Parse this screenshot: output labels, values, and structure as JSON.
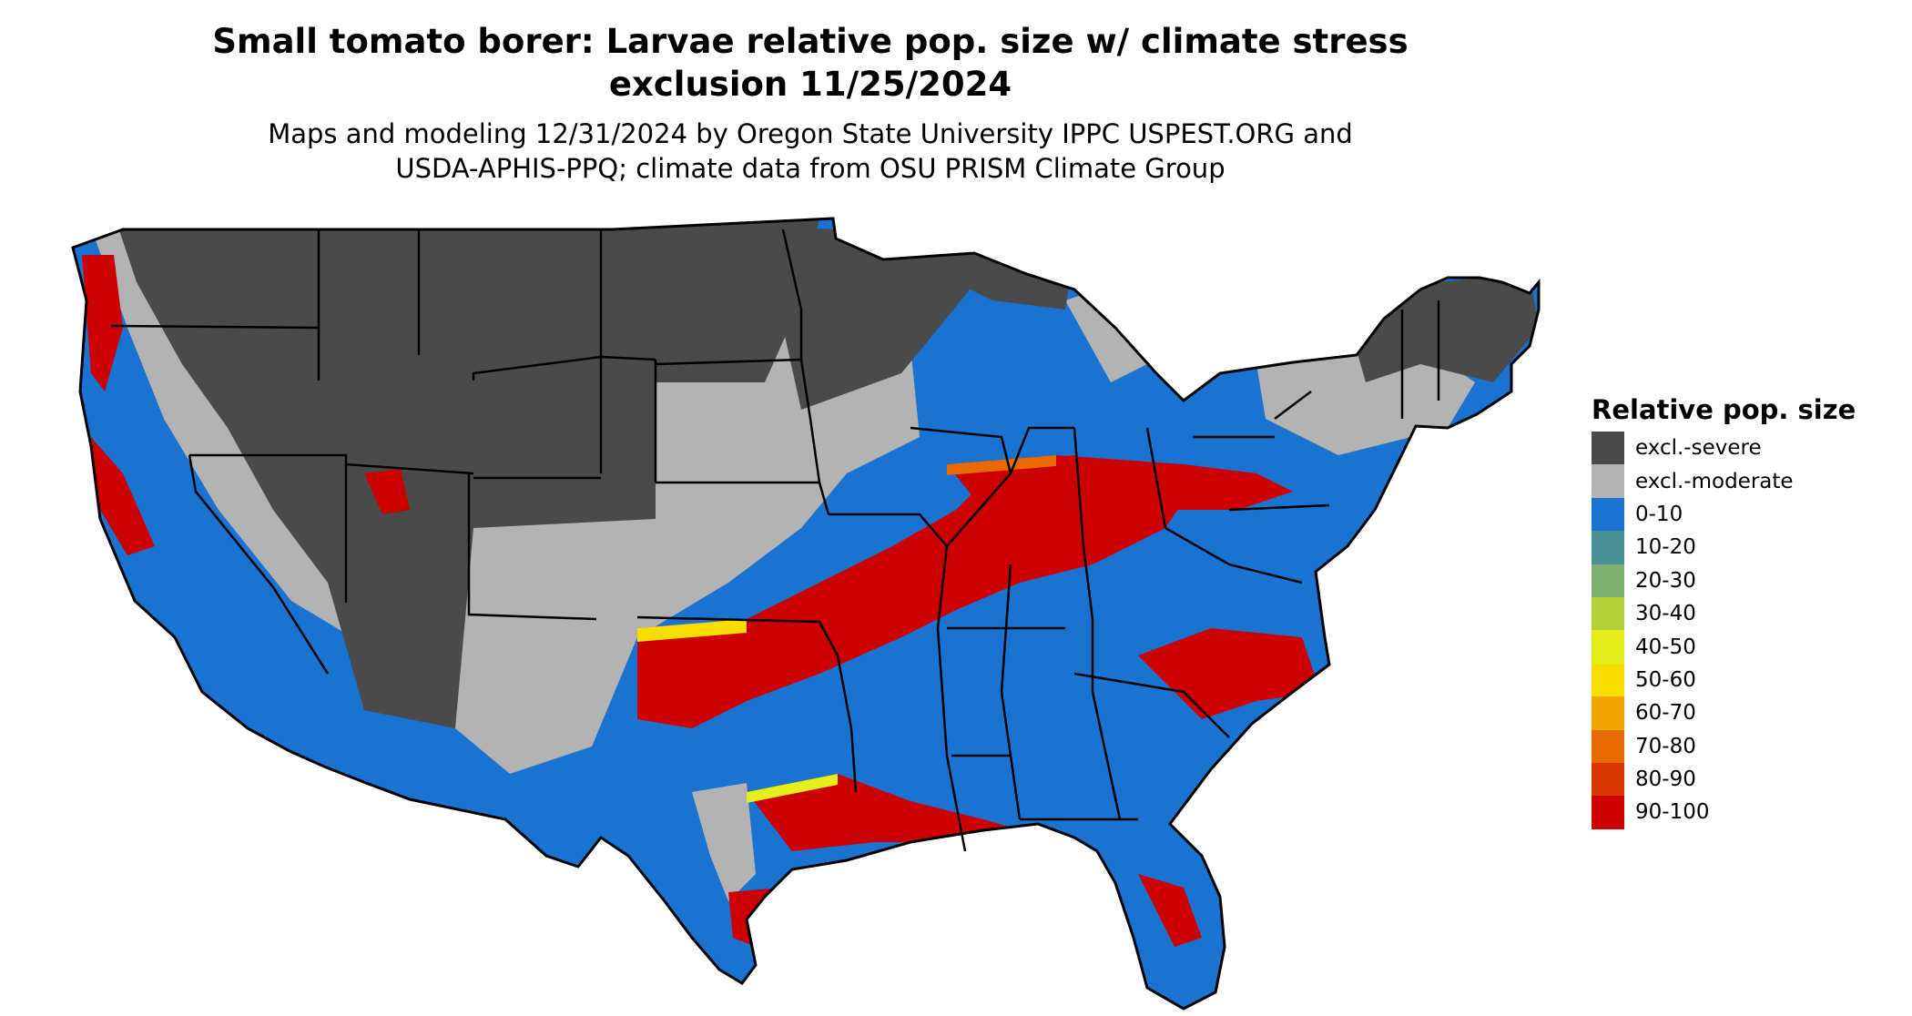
{
  "title": "Small tomato borer: Larvae relative pop. size w/ climate stress exclusion 11/25/2024",
  "title_line1": "Small tomato borer: Larvae relative pop. size w/ climate stress",
  "title_line2": "exclusion 11/25/2024",
  "subtitle_line1": "Maps and modeling 12/31/2024 by Oregon State University IPPC USPEST.ORG and",
  "subtitle_line2": "USDA-APHIS-PPQ; climate data from OSU PRISM Climate Group",
  "legend": {
    "title": "Relative pop. size",
    "items": [
      {
        "label": "excl.-severe",
        "color": "#4a4a4a"
      },
      {
        "label": "excl.-moderate",
        "color": "#b3b3b3"
      },
      {
        "label": "0-10",
        "color": "#1a73d0"
      },
      {
        "label": "10-20",
        "color": "#4a9099"
      },
      {
        "label": "20-30",
        "color": "#7fb070"
      },
      {
        "label": "30-40",
        "color": "#b5d13a"
      },
      {
        "label": "40-50",
        "color": "#e5ef1c"
      },
      {
        "label": "50-60",
        "color": "#f8dd00"
      },
      {
        "label": "60-70",
        "color": "#f0a500"
      },
      {
        "label": "70-80",
        "color": "#e86a00"
      },
      {
        "label": "80-90",
        "color": "#d83800"
      },
      {
        "label": "90-100",
        "color": "#cc0000"
      }
    ]
  }
}
